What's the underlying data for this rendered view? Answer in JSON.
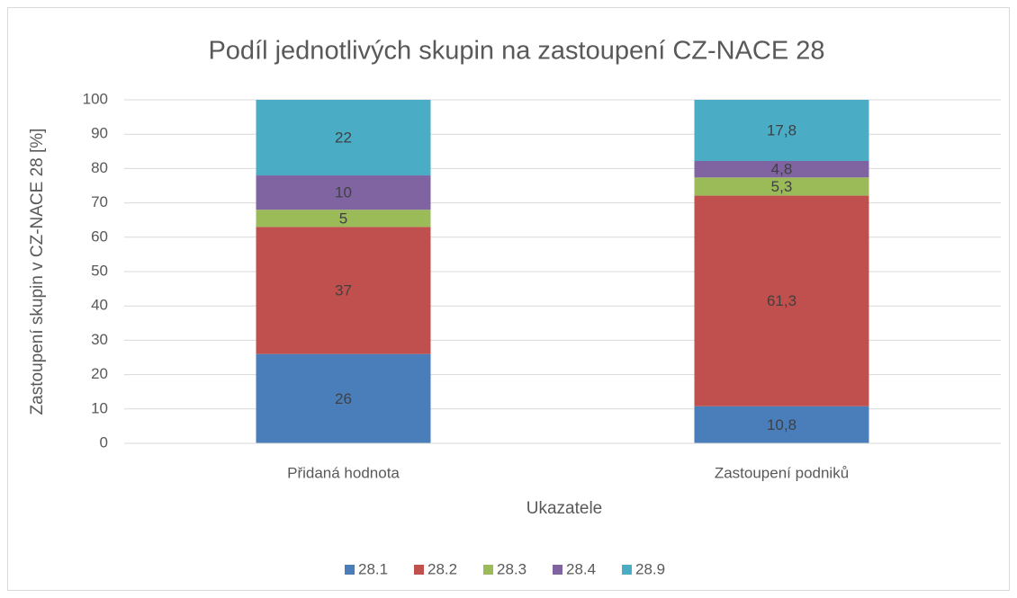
{
  "chart_data": {
    "type": "stacked_bar",
    "title": "Podíl jednotlivých skupin na zastoupení CZ-NACE 28",
    "x_label": "Ukazatele",
    "y_label": "Zastoupení skupin v CZ-NACE 28 [%]",
    "categories": [
      "Přidaná hodnota",
      "Zastoupení podniků"
    ],
    "series": [
      {
        "name": "28.1",
        "color": "#4a7ebb",
        "values": [
          26,
          10.8
        ],
        "value_labels": [
          "26",
          "10,8"
        ]
      },
      {
        "name": "28.2",
        "color": "#c0504d",
        "values": [
          37,
          61.3
        ],
        "value_labels": [
          "37",
          "61,3"
        ]
      },
      {
        "name": "28.3",
        "color": "#9bbb59",
        "values": [
          5,
          5.3
        ],
        "value_labels": [
          "5",
          "5,3"
        ]
      },
      {
        "name": "28.4",
        "color": "#8064a2",
        "values": [
          10,
          4.8
        ],
        "value_labels": [
          "10",
          "4,8"
        ]
      },
      {
        "name": "28.9",
        "color": "#4bacc6",
        "values": [
          22,
          17.8
        ],
        "value_labels": [
          "22",
          "17,8"
        ]
      }
    ],
    "ylim": [
      0,
      100
    ],
    "yticks": [
      0,
      10,
      20,
      30,
      40,
      50,
      60,
      70,
      80,
      90,
      100
    ],
    "grid": true,
    "legend": "bottom"
  }
}
